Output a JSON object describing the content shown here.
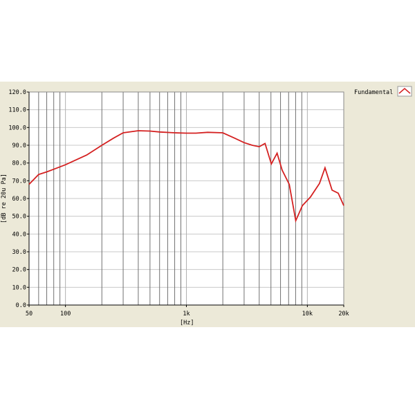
{
  "chart_data": {
    "type": "line",
    "title": "",
    "xlabel": "[Hz]",
    "ylabel": "[dB re 20u Pa]",
    "x_scale": "log",
    "xlim": [
      50,
      20000
    ],
    "ylim": [
      0,
      120
    ],
    "grid": true,
    "legend_position": "top-right",
    "x_tick_labels": [
      {
        "v": 50,
        "t": "50"
      },
      {
        "v": 100,
        "t": "100"
      },
      {
        "v": 1000,
        "t": "1k"
      },
      {
        "v": 10000,
        "t": "10k"
      },
      {
        "v": 20000,
        "t": "20k"
      }
    ],
    "y_ticks": [
      0,
      10,
      20,
      30,
      40,
      50,
      60,
      70,
      80,
      90,
      100,
      110,
      120
    ],
    "y_tick_labels": [
      "0.0",
      "10.0",
      "20.0",
      "30.0",
      "40.0",
      "50.0",
      "60.0",
      "70.0",
      "80.0",
      "90.0",
      "100.0",
      "110.0",
      "120.0"
    ],
    "series": [
      {
        "name": "Fundamental",
        "color": "#d42020",
        "x": [
          50,
          60,
          70,
          80,
          100,
          150,
          200,
          250,
          300,
          400,
          500,
          600,
          800,
          1000,
          1200,
          1500,
          2000,
          2500,
          3000,
          3500,
          4000,
          4470,
          5035,
          5620,
          6190,
          7090,
          8020,
          9100,
          10600,
          12600,
          14000,
          16000,
          18000,
          20000
        ],
        "y": [
          68,
          73.5,
          75,
          76.5,
          79,
          84.5,
          90,
          94,
          97,
          98.2,
          98,
          97.5,
          97,
          96.8,
          96.8,
          97.3,
          97,
          94,
          91.5,
          90,
          89.2,
          91,
          79.5,
          85.5,
          76,
          68,
          47.5,
          56,
          60.8,
          68.5,
          77.3,
          64.7,
          63,
          56
        ]
      }
    ]
  }
}
